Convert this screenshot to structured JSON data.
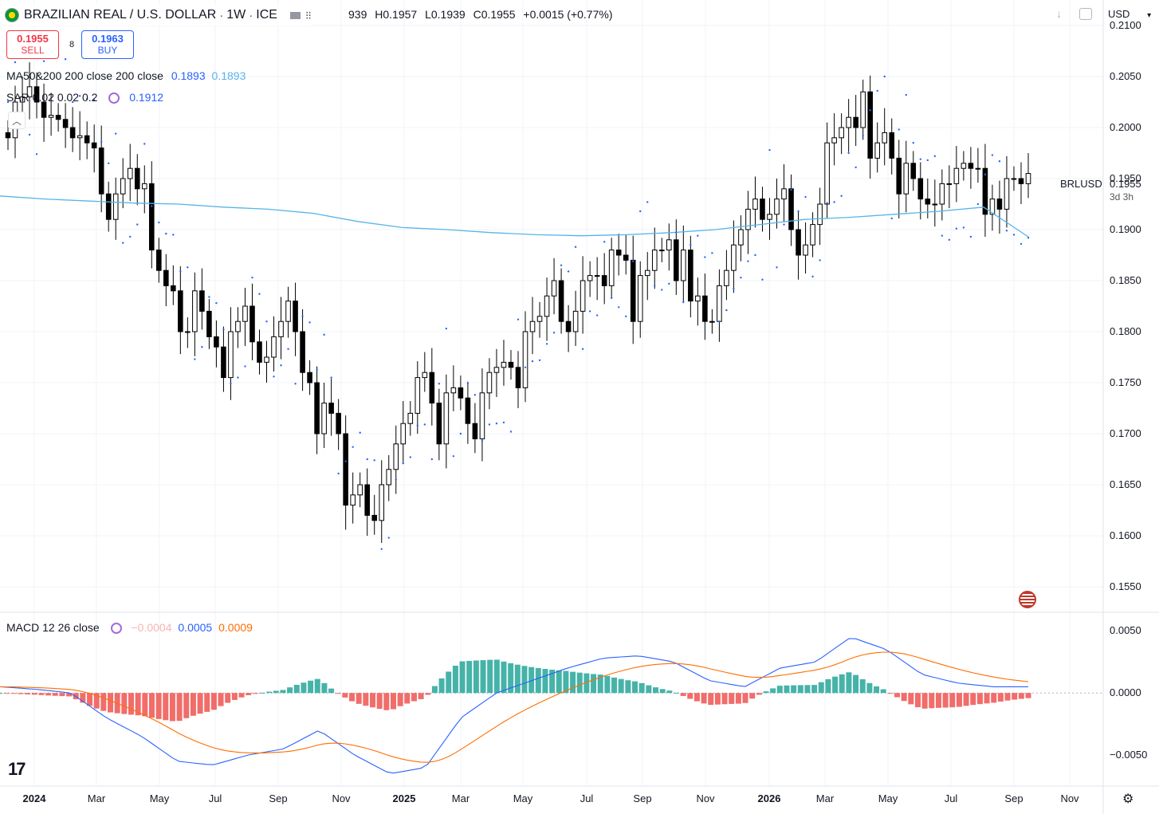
{
  "header": {
    "symbol_title": "BRAZILIAN REAL / U.S. DOLLAR",
    "interval": "1W",
    "exchange": "ICE",
    "sep": "·"
  },
  "ohlc": {
    "o_partial": "939",
    "h": "H0.1957",
    "l": "L0.1939",
    "c": "C0.1955",
    "chg": "+0.0015 (+0.77%)"
  },
  "trade": {
    "sell_price": "0.1955",
    "sell_label": "SELL",
    "spread": "8",
    "buy_price": "0.1963",
    "buy_label": "BUY"
  },
  "indicators": {
    "ma": {
      "label": "MA50&200 200 close 200 close",
      "v1": "0.1893",
      "v2": "0.1893"
    },
    "sar": {
      "label": "SAR 0.02 0.02 0.2",
      "value": "0.1912"
    },
    "macd": {
      "label": "MACD 12 26 close",
      "hist": "−0.0004",
      "macd": "0.0005",
      "signal": "0.0009"
    }
  },
  "currency_select": "USD",
  "last_price": {
    "symbol": "BRLUSD",
    "price": "0.1955",
    "countdown": "3d 3h"
  },
  "price_axis": [
    "0.2100",
    "0.2050",
    "0.2000",
    "0.1950",
    "0.1900",
    "0.1850",
    "0.1800",
    "0.1750",
    "0.1700",
    "0.1650",
    "0.1600",
    "0.1550"
  ],
  "macd_axis": [
    "0.0050",
    "0.0000",
    "−0.0050"
  ],
  "time_axis": [
    "2024",
    "Mar",
    "May",
    "Jul",
    "Sep",
    "Nov",
    "2025",
    "Mar",
    "May",
    "Jul",
    "Sep",
    "Nov",
    "2026",
    "Mar",
    "May",
    "Jul",
    "Sep",
    "Nov"
  ],
  "colors": {
    "up": "#ffffff",
    "down": "#000000",
    "ma": "#56b4e9",
    "sar": "#2962ff",
    "macd": "#2962ff",
    "signal": "#ff6d00",
    "hist_up": "#26a69a",
    "hist_down": "#ef5350"
  },
  "chart_data": {
    "type": "candlestick",
    "interval": "1W",
    "price_range": [
      0.1525,
      0.2125
    ],
    "closes": [
      0.199,
      0.2025,
      0.203,
      0.204,
      0.2025,
      0.201,
      0.2012,
      0.2008,
      0.2,
      0.199,
      0.1992,
      0.1985,
      0.198,
      0.1935,
      0.191,
      0.1935,
      0.195,
      0.196,
      0.194,
      0.1945,
      0.188,
      0.186,
      0.1845,
      0.184,
      0.18,
      0.18,
      0.184,
      0.182,
      0.1795,
      0.1785,
      0.1755,
      0.18,
      0.181,
      0.1825,
      0.179,
      0.177,
      0.1775,
      0.1795,
      0.181,
      0.183,
      0.18,
      0.176,
      0.175,
      0.17,
      0.173,
      0.172,
      0.17,
      0.163,
      0.164,
      0.165,
      0.162,
      0.1615,
      0.165,
      0.1665,
      0.169,
      0.171,
      0.172,
      0.1755,
      0.176,
      0.173,
      0.169,
      0.174,
      0.1745,
      0.1735,
      0.171,
      0.1695,
      0.174,
      0.176,
      0.1765,
      0.177,
      0.1765,
      0.1745,
      0.18,
      0.181,
      0.1815,
      0.1835,
      0.185,
      0.181,
      0.18,
      0.182,
      0.185,
      0.1855,
      0.1855,
      0.1845,
      0.188,
      0.1875,
      0.187,
      0.181,
      0.1855,
      0.186,
      0.188,
      0.188,
      0.189,
      0.185,
      0.188,
      0.183,
      0.1835,
      0.181,
      0.181,
      0.1845,
      0.186,
      0.1885,
      0.19,
      0.192,
      0.193,
      0.191,
      0.1915,
      0.193,
      0.194,
      0.19,
      0.1875,
      0.1885,
      0.1905,
      0.1925,
      0.1985,
      0.199,
      0.2,
      0.201,
      0.2,
      0.2035,
      0.197,
      0.1985,
      0.1995,
      0.197,
      0.1935,
      0.1965,
      0.195,
      0.193,
      0.1925,
      0.1925,
      0.1945,
      0.1945,
      0.196,
      0.1965,
      0.196,
      0.196,
      0.1915,
      0.193,
      0.192,
      0.195,
      0.195,
      0.1945,
      0.1955
    ],
    "ma_levels": [
      0.1933,
      0.193,
      0.1928,
      0.1926,
      0.1925,
      0.1922,
      0.192,
      0.1916,
      0.1908,
      0.1902,
      0.19,
      0.1897,
      0.1895,
      0.1894,
      0.1895,
      0.1897,
      0.19,
      0.1905,
      0.191,
      0.1912,
      0.1915,
      0.1918,
      0.1922,
      0.1893
    ],
    "macd_range": [
      -0.0075,
      0.0065
    ],
    "macd_levels": [
      0.0005,
      0.0003,
      0.0,
      -0.002,
      -0.0035,
      -0.0055,
      -0.0058,
      -0.005,
      -0.0045,
      -0.003,
      -0.005,
      -0.0065,
      -0.006,
      -0.002,
      0.0,
      0.001,
      0.002,
      0.0028,
      0.003,
      0.0025,
      0.001,
      0.0005,
      0.002,
      0.0025,
      0.0045,
      0.0035,
      0.0015,
      0.0008,
      0.0005,
      0.0005
    ]
  }
}
